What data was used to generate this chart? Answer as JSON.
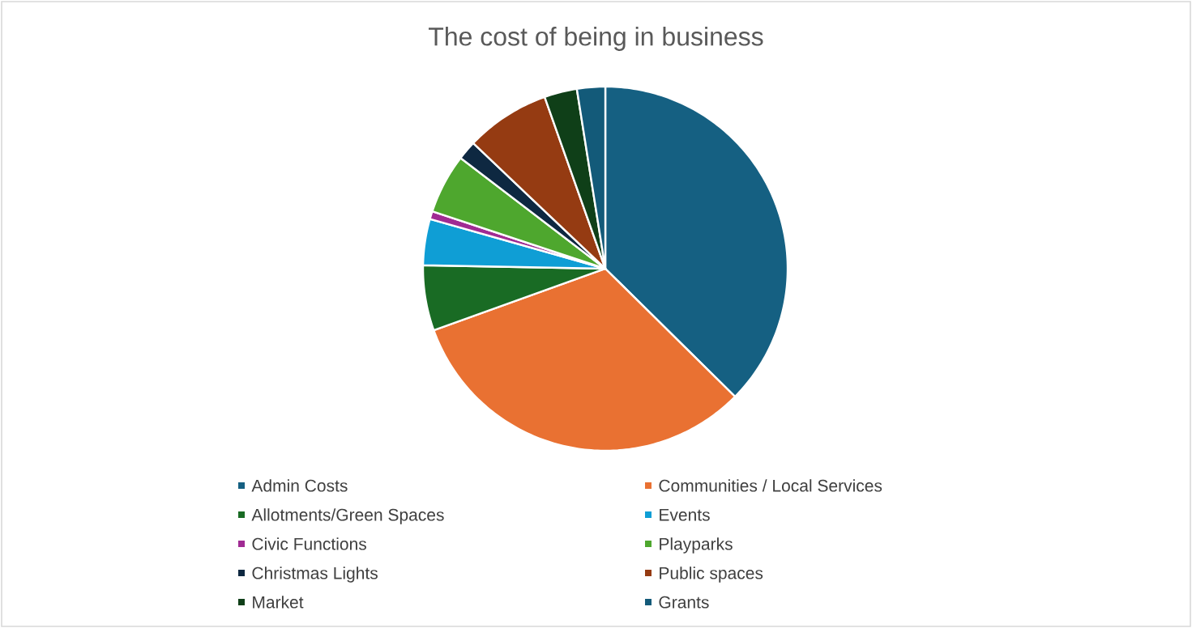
{
  "chart_data": {
    "type": "pie",
    "title": "The cost of being in business",
    "categories": [
      "Admin Costs",
      "Communities / Local Services",
      "Allotments/Green Spaces",
      "Events",
      "Civic Functions",
      "Playparks",
      "Christmas Lights",
      "Public spaces",
      "Market",
      "Grants"
    ],
    "values": [
      37.4,
      32.1,
      5.8,
      4.1,
      0.7,
      5.3,
      1.7,
      7.5,
      2.9,
      2.5
    ],
    "colors": [
      "#156082",
      "#e97132",
      "#196b24",
      "#0f9ed5",
      "#a02b93",
      "#4ea72e",
      "#0e2841",
      "#953b12",
      "#0f3f18",
      "#135a79"
    ],
    "legend": "bottom"
  }
}
